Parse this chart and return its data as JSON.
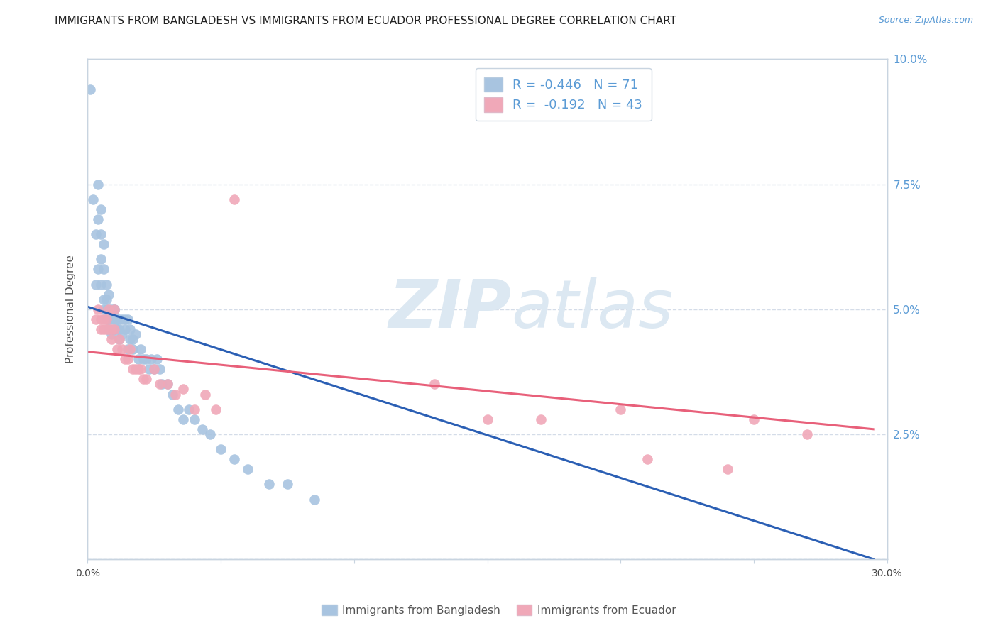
{
  "title": "IMMIGRANTS FROM BANGLADESH VS IMMIGRANTS FROM ECUADOR PROFESSIONAL DEGREE CORRELATION CHART",
  "source": "Source: ZipAtlas.com",
  "xlabel": "",
  "ylabel": "Professional Degree",
  "xlim": [
    0,
    0.3
  ],
  "ylim": [
    0,
    0.1
  ],
  "xticks": [
    0.0,
    0.05,
    0.1,
    0.15,
    0.2,
    0.25,
    0.3
  ],
  "yticks": [
    0.0,
    0.025,
    0.05,
    0.075,
    0.1
  ],
  "ytick_labels": [
    "",
    "2.5%",
    "5.0%",
    "7.5%",
    "10.0%"
  ],
  "xtick_labels": [
    "0.0%",
    "",
    "",
    "",
    "",
    "",
    "30.0%"
  ],
  "blue_R": -0.446,
  "blue_N": 71,
  "pink_R": -0.192,
  "pink_N": 43,
  "blue_color": "#a8c4e0",
  "blue_line_color": "#2b5fb4",
  "pink_color": "#f0a8b8",
  "pink_line_color": "#e8607a",
  "legend_label_blue": "Immigrants from Bangladesh",
  "legend_label_pink": "Immigrants from Ecuador",
  "blue_x": [
    0.001,
    0.002,
    0.003,
    0.003,
    0.004,
    0.004,
    0.004,
    0.005,
    0.005,
    0.005,
    0.005,
    0.006,
    0.006,
    0.006,
    0.006,
    0.007,
    0.007,
    0.007,
    0.007,
    0.008,
    0.008,
    0.008,
    0.008,
    0.009,
    0.009,
    0.009,
    0.01,
    0.01,
    0.01,
    0.01,
    0.011,
    0.011,
    0.011,
    0.012,
    0.012,
    0.012,
    0.013,
    0.013,
    0.014,
    0.014,
    0.015,
    0.015,
    0.016,
    0.016,
    0.017,
    0.017,
    0.018,
    0.019,
    0.02,
    0.021,
    0.022,
    0.023,
    0.024,
    0.025,
    0.026,
    0.027,
    0.028,
    0.03,
    0.032,
    0.034,
    0.036,
    0.038,
    0.04,
    0.043,
    0.046,
    0.05,
    0.055,
    0.06,
    0.068,
    0.075,
    0.085
  ],
  "blue_y": [
    0.094,
    0.072,
    0.055,
    0.065,
    0.075,
    0.068,
    0.058,
    0.065,
    0.06,
    0.055,
    0.07,
    0.052,
    0.058,
    0.063,
    0.05,
    0.052,
    0.055,
    0.048,
    0.05,
    0.053,
    0.048,
    0.05,
    0.046,
    0.05,
    0.048,
    0.045,
    0.05,
    0.048,
    0.046,
    0.05,
    0.048,
    0.046,
    0.048,
    0.046,
    0.044,
    0.048,
    0.045,
    0.048,
    0.046,
    0.048,
    0.042,
    0.048,
    0.044,
    0.046,
    0.042,
    0.044,
    0.045,
    0.04,
    0.042,
    0.04,
    0.04,
    0.038,
    0.04,
    0.038,
    0.04,
    0.038,
    0.035,
    0.035,
    0.033,
    0.03,
    0.028,
    0.03,
    0.028,
    0.026,
    0.025,
    0.022,
    0.02,
    0.018,
    0.015,
    0.015,
    0.012
  ],
  "pink_x": [
    0.003,
    0.004,
    0.005,
    0.005,
    0.006,
    0.006,
    0.007,
    0.007,
    0.008,
    0.008,
    0.009,
    0.009,
    0.01,
    0.01,
    0.011,
    0.012,
    0.013,
    0.014,
    0.015,
    0.016,
    0.017,
    0.018,
    0.019,
    0.02,
    0.021,
    0.022,
    0.025,
    0.027,
    0.03,
    0.033,
    0.036,
    0.04,
    0.044,
    0.048,
    0.055,
    0.13,
    0.15,
    0.17,
    0.2,
    0.21,
    0.24,
    0.25,
    0.27
  ],
  "pink_y": [
    0.048,
    0.05,
    0.048,
    0.046,
    0.048,
    0.046,
    0.048,
    0.046,
    0.05,
    0.046,
    0.044,
    0.046,
    0.05,
    0.046,
    0.042,
    0.044,
    0.042,
    0.04,
    0.04,
    0.042,
    0.038,
    0.038,
    0.038,
    0.038,
    0.036,
    0.036,
    0.038,
    0.035,
    0.035,
    0.033,
    0.034,
    0.03,
    0.033,
    0.03,
    0.072,
    0.035,
    0.028,
    0.028,
    0.03,
    0.02,
    0.018,
    0.028,
    0.025
  ],
  "blue_trendline_x": [
    0.0,
    0.295
  ],
  "blue_trendline_y": [
    0.0505,
    0.0
  ],
  "pink_trendline_x": [
    0.0,
    0.295
  ],
  "pink_trendline_y": [
    0.0415,
    0.026
  ],
  "watermark_part1": "ZIP",
  "watermark_part2": "atlas",
  "background_color": "#ffffff",
  "grid_color": "#d4dce8",
  "title_fontsize": 11,
  "axis_label_fontsize": 11,
  "tick_fontsize": 10,
  "tick_color_right": "#5b9bd5",
  "border_color": "#c8d4e0"
}
